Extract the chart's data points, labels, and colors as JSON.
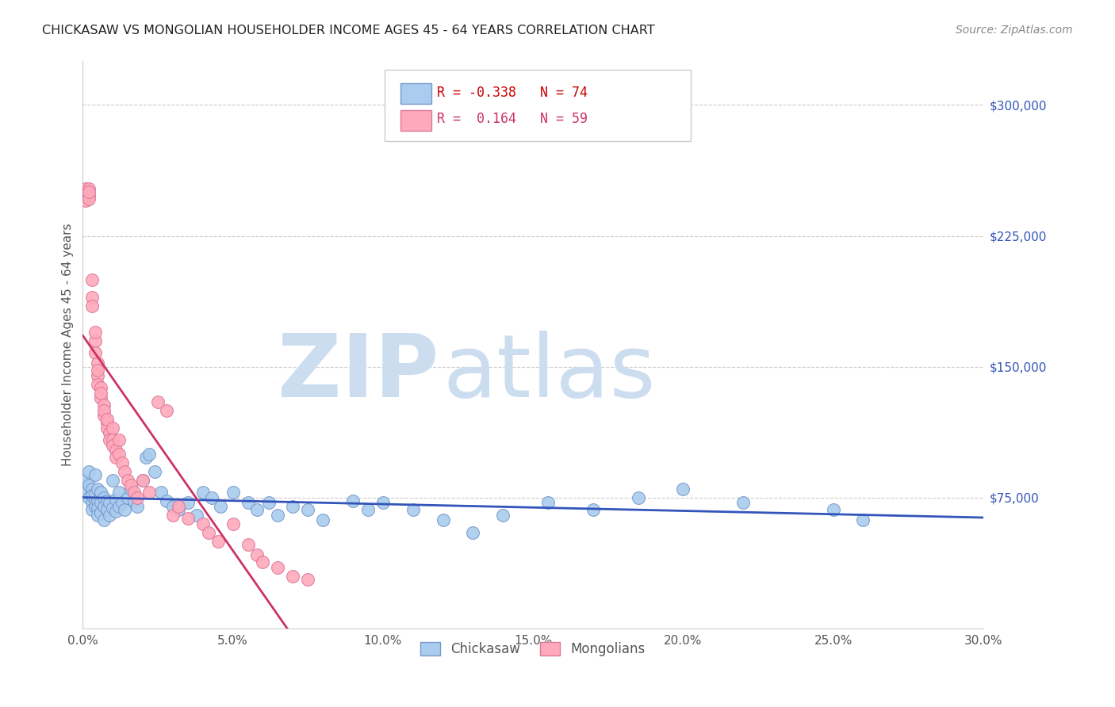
{
  "title": "CHICKASAW VS MONGOLIAN HOUSEHOLDER INCOME AGES 45 - 64 YEARS CORRELATION CHART",
  "source": "Source: ZipAtlas.com",
  "ylabel": "Householder Income Ages 45 - 64 years",
  "xlim": [
    0.0,
    0.3
  ],
  "ylim": [
    0,
    325000
  ],
  "xtick_labels": [
    "0.0%",
    "5.0%",
    "10.0%",
    "15.0%",
    "20.0%",
    "25.0%",
    "30.0%"
  ],
  "xtick_vals": [
    0.0,
    0.05,
    0.1,
    0.15,
    0.2,
    0.25,
    0.3
  ],
  "ytick_labels": [
    "$75,000",
    "$150,000",
    "$225,000",
    "$300,000"
  ],
  "ytick_vals": [
    75000,
    150000,
    225000,
    300000
  ],
  "background_color": "#ffffff",
  "grid_color": "#cccccc",
  "watermark_zip": "ZIP",
  "watermark_atlas": "atlas",
  "watermark_color": "#ccddf0",
  "chickasaw_color": "#aaccee",
  "chickasaw_edge_color": "#7799cc",
  "mongolian_color": "#ffaabb",
  "mongolian_edge_color": "#dd7799",
  "chickasaw_line_color": "#3355bb",
  "mongolian_line_color": "#cc3366",
  "mongolian_dash_color": "#e8aabb",
  "legend_R_chickasaw": "-0.338",
  "legend_N_chickasaw": "74",
  "legend_R_mongolian": "0.164",
  "legend_N_mongolian": "59",
  "chickasaw_x": [
    0.001,
    0.001,
    0.002,
    0.002,
    0.002,
    0.003,
    0.003,
    0.003,
    0.003,
    0.004,
    0.004,
    0.004,
    0.004,
    0.005,
    0.005,
    0.005,
    0.005,
    0.006,
    0.006,
    0.006,
    0.007,
    0.007,
    0.007,
    0.008,
    0.008,
    0.009,
    0.009,
    0.01,
    0.01,
    0.011,
    0.011,
    0.012,
    0.012,
    0.013,
    0.014,
    0.015,
    0.016,
    0.017,
    0.018,
    0.02,
    0.021,
    0.022,
    0.024,
    0.026,
    0.028,
    0.03,
    0.032,
    0.035,
    0.038,
    0.04,
    0.043,
    0.046,
    0.05,
    0.055,
    0.058,
    0.062,
    0.065,
    0.07,
    0.075,
    0.08,
    0.09,
    0.095,
    0.1,
    0.11,
    0.12,
    0.13,
    0.14,
    0.155,
    0.17,
    0.185,
    0.2,
    0.22,
    0.25,
    0.26
  ],
  "chickasaw_y": [
    85000,
    78000,
    82000,
    75000,
    90000,
    72000,
    80000,
    68000,
    76000,
    88000,
    74000,
    70000,
    77000,
    73000,
    69000,
    80000,
    65000,
    72000,
    78000,
    66000,
    75000,
    70000,
    62000,
    73000,
    68000,
    72000,
    65000,
    85000,
    69000,
    74000,
    67000,
    78000,
    70000,
    72000,
    68000,
    75000,
    80000,
    73000,
    70000,
    85000,
    98000,
    100000,
    90000,
    78000,
    73000,
    70000,
    68000,
    72000,
    65000,
    78000,
    75000,
    70000,
    78000,
    72000,
    68000,
    72000,
    65000,
    70000,
    68000,
    62000,
    73000,
    68000,
    72000,
    68000,
    62000,
    55000,
    65000,
    72000,
    68000,
    75000,
    80000,
    72000,
    68000,
    62000
  ],
  "mongolian_x": [
    0.001,
    0.001,
    0.001,
    0.001,
    0.002,
    0.002,
    0.002,
    0.002,
    0.003,
    0.003,
    0.003,
    0.004,
    0.004,
    0.004,
    0.005,
    0.005,
    0.005,
    0.005,
    0.006,
    0.006,
    0.006,
    0.007,
    0.007,
    0.007,
    0.008,
    0.008,
    0.008,
    0.009,
    0.009,
    0.01,
    0.01,
    0.01,
    0.011,
    0.011,
    0.012,
    0.012,
    0.013,
    0.014,
    0.015,
    0.016,
    0.017,
    0.018,
    0.02,
    0.022,
    0.025,
    0.028,
    0.03,
    0.032,
    0.035,
    0.04,
    0.042,
    0.045,
    0.05,
    0.055,
    0.058,
    0.06,
    0.065,
    0.07,
    0.075
  ],
  "mongolian_y": [
    252000,
    248000,
    250000,
    245000,
    252000,
    248000,
    246000,
    250000,
    200000,
    190000,
    185000,
    165000,
    158000,
    170000,
    152000,
    145000,
    148000,
    140000,
    138000,
    132000,
    135000,
    128000,
    122000,
    125000,
    118000,
    115000,
    120000,
    112000,
    108000,
    115000,
    108000,
    105000,
    102000,
    98000,
    108000,
    100000,
    95000,
    90000,
    85000,
    82000,
    78000,
    75000,
    85000,
    78000,
    130000,
    125000,
    65000,
    70000,
    63000,
    60000,
    55000,
    50000,
    60000,
    48000,
    42000,
    38000,
    35000,
    30000,
    28000
  ]
}
